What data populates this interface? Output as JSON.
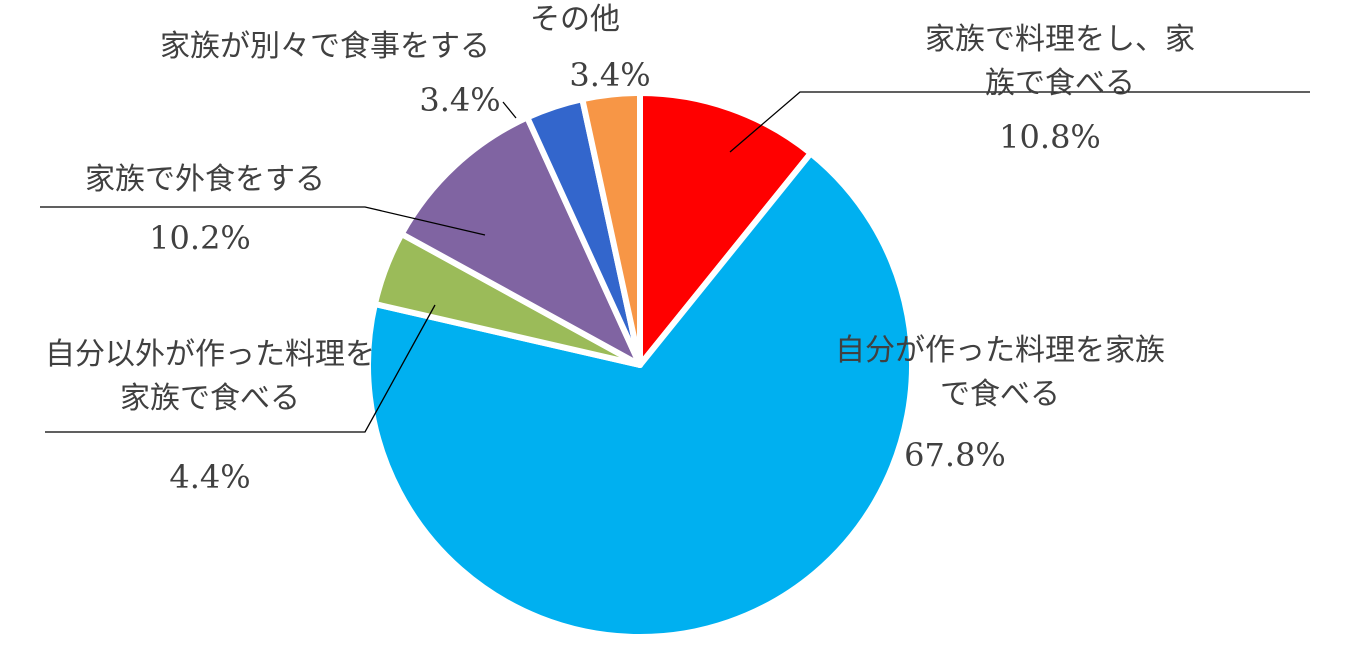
{
  "chart_data": {
    "type": "pie",
    "categories": [
      "家族で料理をし、家族で食べる",
      "自分が作った料理を家族で食べる",
      "自分以外が作った料理を\n家族で食べる",
      "家族で外食をする",
      "家族が別々で食事をする",
      "その他"
    ],
    "values": [
      10.8,
      67.8,
      4.4,
      10.2,
      3.4,
      3.4
    ],
    "value_labels": [
      "10.8%",
      "67.8%",
      "4.4%",
      "10.2%",
      "3.4%",
      "3.4%"
    ],
    "colors": [
      "#ff0000",
      "#00b0f0",
      "#9bbb59",
      "#8064a2",
      "#3366cc",
      "#f79646"
    ]
  }
}
